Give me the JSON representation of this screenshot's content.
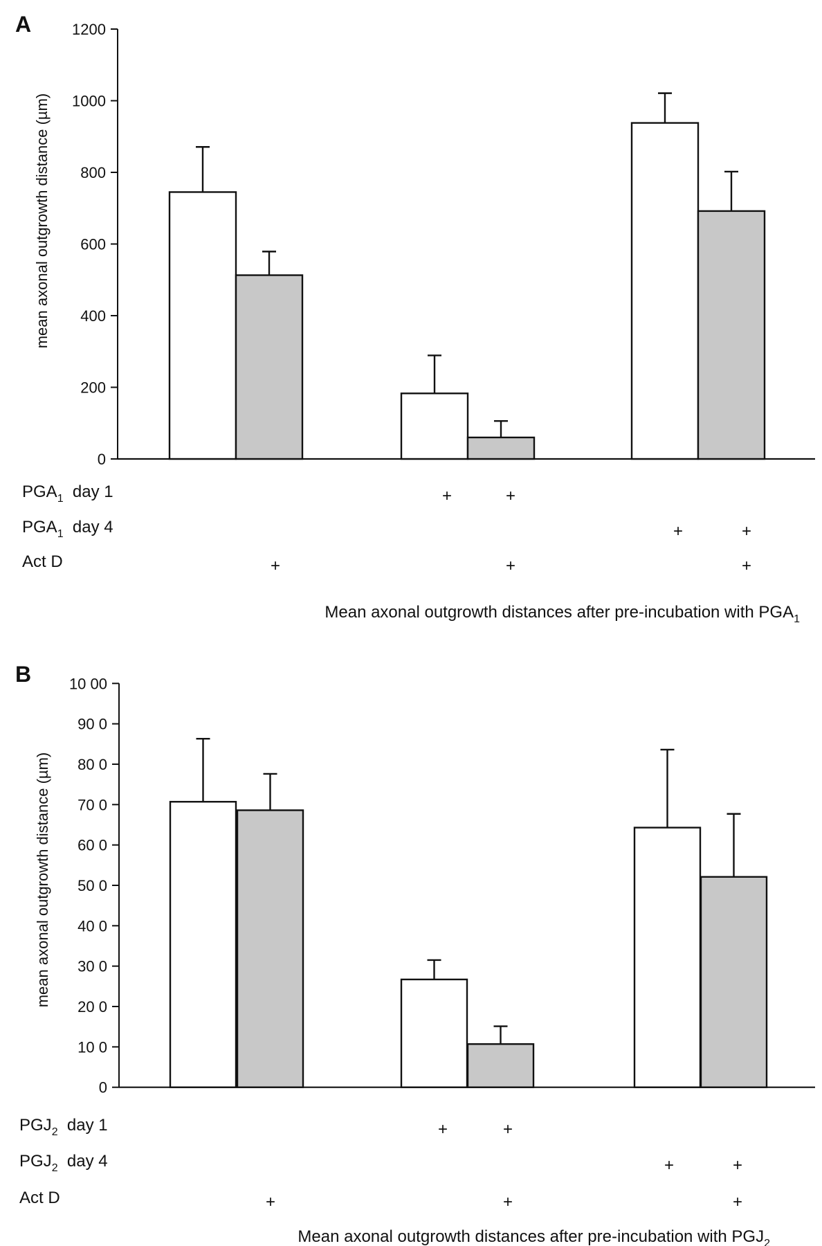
{
  "chart_data": [
    {
      "type": "bar",
      "panel": "A",
      "title": "",
      "caption": "Mean axonal outgrowth distances after pre-incubation with PGA",
      "caption_subscript": "1",
      "xlabel": "",
      "ylabel": "mean axonal outgrowth distance (µm)",
      "ylim": [
        0,
        1200
      ],
      "yticks": [
        0,
        200,
        400,
        600,
        800,
        1000,
        1200
      ],
      "ytick_labels": [
        "0",
        "200",
        "400",
        "600",
        "800",
        "1000",
        "1200"
      ],
      "grid": false,
      "legend": "none",
      "groups": [
        {
          "bars": [
            {
              "fill": "white",
              "value": 745,
              "error": 126
            },
            {
              "fill": "gray",
              "value": 513,
              "error": 66
            }
          ]
        },
        {
          "bars": [
            {
              "fill": "white",
              "value": 183,
              "error": 106
            },
            {
              "fill": "gray",
              "value": 60,
              "error": 46
            }
          ]
        },
        {
          "bars": [
            {
              "fill": "white",
              "value": 938,
              "error": 83
            },
            {
              "fill": "gray",
              "value": 692,
              "error": 110
            }
          ]
        }
      ],
      "condition_rows": [
        {
          "label": "PGA",
          "subscript": "1",
          "suffix": "day 1",
          "marks": [
            false,
            false,
            true,
            true,
            false,
            false
          ]
        },
        {
          "label": "PGA",
          "subscript": "1",
          "suffix": "day 4",
          "marks": [
            false,
            false,
            false,
            false,
            true,
            true
          ]
        },
        {
          "label": "Act D",
          "subscript": "",
          "suffix": "",
          "marks": [
            false,
            true,
            false,
            true,
            false,
            true
          ]
        }
      ],
      "mark_symbol": "+"
    },
    {
      "type": "bar",
      "panel": "B",
      "title": "",
      "caption": "Mean axonal outgrowth distances after pre-incubation with PGJ",
      "caption_subscript": "2",
      "xlabel": "",
      "ylabel": "mean axonal outgrowth distance (µm)",
      "ylim": [
        0,
        1000
      ],
      "yticks": [
        0,
        100,
        200,
        300,
        400,
        500,
        600,
        700,
        800,
        900,
        1000
      ],
      "ytick_labels": [
        "0",
        "10 0",
        "20 0",
        "30 0",
        "40 0",
        "50 0",
        "60 0",
        "70 0",
        "80 0",
        "90 0",
        "10 00"
      ],
      "grid": false,
      "legend": "none",
      "groups": [
        {
          "bars": [
            {
              "fill": "white",
              "value": 707,
              "error": 156
            },
            {
              "fill": "gray",
              "value": 686,
              "error": 90
            }
          ]
        },
        {
          "bars": [
            {
              "fill": "white",
              "value": 267,
              "error": 48
            },
            {
              "fill": "gray",
              "value": 107,
              "error": 44
            }
          ]
        },
        {
          "bars": [
            {
              "fill": "white",
              "value": 643,
              "error": 193
            },
            {
              "fill": "gray",
              "value": 521,
              "error": 156
            }
          ]
        }
      ],
      "condition_rows": [
        {
          "label": "PGJ",
          "subscript": "2",
          "suffix": "day 1",
          "marks": [
            false,
            false,
            true,
            true,
            false,
            false
          ]
        },
        {
          "label": "PGJ",
          "subscript": "2",
          "suffix": "day 4",
          "marks": [
            false,
            false,
            false,
            false,
            true,
            true
          ]
        },
        {
          "label": "Act D",
          "subscript": "",
          "suffix": "",
          "marks": [
            false,
            true,
            false,
            true,
            false,
            true
          ]
        }
      ],
      "mark_symbol": "+"
    }
  ],
  "colors": {
    "bar_white": "#ffffff",
    "bar_gray": "#c8c8c8",
    "stroke": "#111111"
  }
}
